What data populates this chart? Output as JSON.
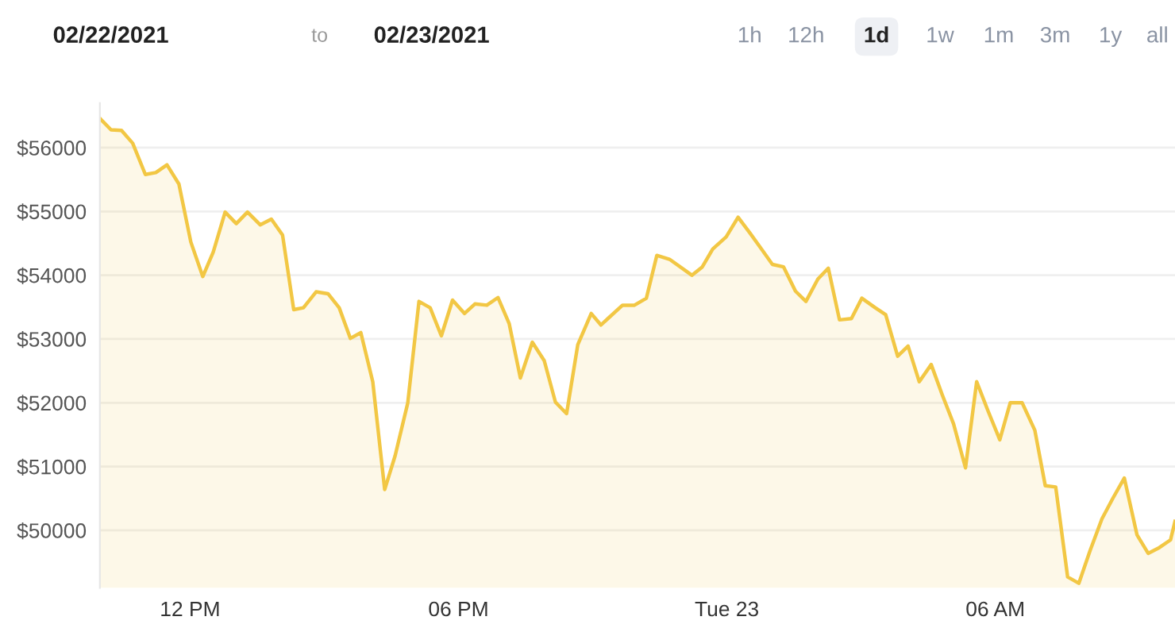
{
  "chart_data": {
    "type": "area",
    "annotations": [
      "02/22/2021",
      "to",
      "02/23/2021",
      "1h",
      "12h",
      "1d",
      "1w",
      "1m",
      "3m",
      "1y",
      "all"
    ],
    "x": [
      "2021-02-22T09:59",
      "2021-02-22T10:14",
      "2021-02-22T10:28",
      "2021-02-22T10:43",
      "2021-02-22T11:00",
      "2021-02-22T11:14",
      "2021-02-22T11:29",
      "2021-02-22T11:45",
      "2021-02-22T12:01",
      "2021-02-22T12:17",
      "2021-02-22T12:31",
      "2021-02-22T12:47",
      "2021-02-22T13:02",
      "2021-02-22T13:17",
      "2021-02-22T13:34",
      "2021-02-22T13:49",
      "2021-02-22T14:04",
      "2021-02-22T14:19",
      "2021-02-22T14:32",
      "2021-02-22T14:49",
      "2021-02-22T15:05",
      "2021-02-22T15:20",
      "2021-02-22T15:35",
      "2021-02-22T15:49",
      "2021-02-22T16:05",
      "2021-02-22T16:21",
      "2021-02-22T16:35",
      "2021-02-22T16:52",
      "2021-02-22T17:07",
      "2021-02-22T17:22",
      "2021-02-22T17:37",
      "2021-02-22T17:52",
      "2021-02-22T18:08",
      "2021-02-22T18:22",
      "2021-02-22T18:38",
      "2021-02-22T18:53",
      "2021-02-22T19:08",
      "2021-02-22T19:23",
      "2021-02-22T19:39",
      "2021-02-22T19:55",
      "2021-02-22T20:10",
      "2021-02-22T20:25",
      "2021-02-22T20:40",
      "2021-02-22T20:58",
      "2021-02-22T21:11",
      "2021-02-22T21:40",
      "2021-02-22T21:56",
      "2021-02-22T22:12",
      "2021-02-22T22:26",
      "2021-02-22T22:43",
      "2021-02-22T23:13",
      "2021-02-22T23:27",
      "2021-02-22T23:41",
      "2021-02-22T23:59",
      "2021-02-23T00:15",
      "2021-02-23T00:31",
      "2021-02-23T00:47",
      "2021-02-23T01:01",
      "2021-02-23T01:16",
      "2021-02-23T01:32",
      "2021-02-23T01:46",
      "2021-02-23T02:02",
      "2021-02-23T02:16",
      "2021-02-23T02:31",
      "2021-02-23T02:47",
      "2021-02-23T03:01",
      "2021-02-23T03:19",
      "2021-02-23T03:33",
      "2021-02-23T03:49",
      "2021-02-23T04:03",
      "2021-02-23T04:18",
      "2021-02-23T04:34",
      "2021-02-23T04:49",
      "2021-02-23T05:04",
      "2021-02-23T05:20",
      "2021-02-23T05:35",
      "2021-02-23T05:50",
      "2021-02-23T06:06",
      "2021-02-23T06:20",
      "2021-02-23T06:36",
      "2021-02-23T06:53",
      "2021-02-23T07:07",
      "2021-02-23T07:21",
      "2021-02-23T07:37",
      "2021-02-23T07:52",
      "2021-02-23T08:07",
      "2021-02-23T08:23",
      "2021-02-23T08:38",
      "2021-02-23T08:53",
      "2021-02-23T09:10",
      "2021-02-23T09:25",
      "2021-02-23T09:40",
      "2021-02-23T09:55",
      "2021-02-23T10:01"
    ],
    "series": [
      {
        "color": "#f2c744",
        "values": [
          56460,
          56280,
          56270,
          56070,
          55580,
          55610,
          55730,
          55430,
          54520,
          53980,
          54360,
          54990,
          54810,
          54990,
          54790,
          54880,
          54630,
          53460,
          53490,
          53740,
          53710,
          53490,
          53010,
          53100,
          52330,
          50640,
          51170,
          52000,
          53590,
          53490,
          53050,
          53610,
          53400,
          53550,
          53530,
          53650,
          53240,
          52390,
          52950,
          52660,
          52010,
          51830,
          52910,
          53400,
          53220,
          53530,
          53530,
          53640,
          54310,
          54250,
          54000,
          54130,
          54410,
          54600,
          54910,
          54660,
          54400,
          54170,
          54130,
          53750,
          53590,
          53940,
          54110,
          53300,
          53320,
          53640,
          53490,
          53380,
          52730,
          52890,
          52330,
          52600,
          52120,
          51670,
          50980,
          52330,
          51880,
          51420,
          52000,
          52000,
          51570,
          50700,
          50680,
          49270,
          49170,
          49680,
          50180,
          50510,
          50820,
          49930,
          49640,
          49730,
          49850,
          50140
        ]
      }
    ],
    "xlim": [
      "2021-02-22T09:59",
      "2021-02-23T10:01"
    ],
    "xticks": [
      {
        "value": "2021-02-22T12:00",
        "label": "12 PM"
      },
      {
        "value": "2021-02-22T18:00",
        "label": "06 PM"
      },
      {
        "value": "2021-02-23T00:00",
        "label": "Tue 23"
      },
      {
        "value": "2021-02-23T06:00",
        "label": "06 AM"
      }
    ],
    "ylim": [
      49100,
      56700
    ],
    "yticks": [
      {
        "value": 50000,
        "label": "$50000"
      },
      {
        "value": 51000,
        "label": "$51000"
      },
      {
        "value": 52000,
        "label": "$52000"
      },
      {
        "value": 53000,
        "label": "$53000"
      },
      {
        "value": 54000,
        "label": "$54000"
      },
      {
        "value": 55000,
        "label": "$55000"
      },
      {
        "value": 56000,
        "label": "$56000"
      }
    ],
    "grid": "y",
    "marker": "none",
    "line_style": "solid"
  }
}
